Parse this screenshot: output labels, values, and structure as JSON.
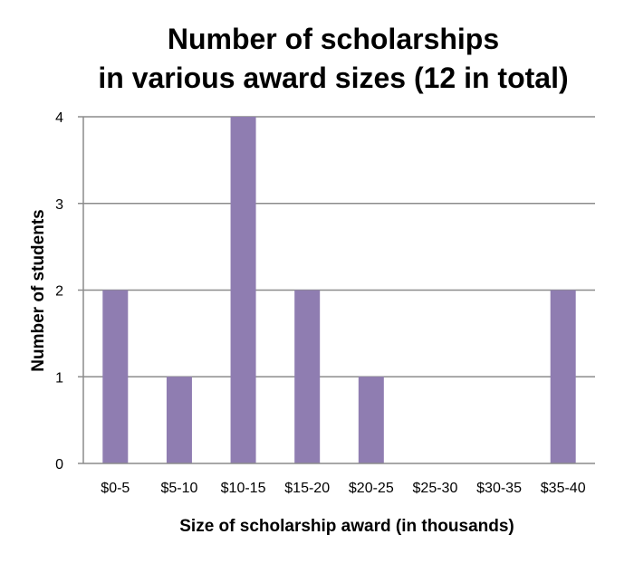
{
  "chart_data": {
    "type": "bar",
    "title_lines": [
      "Number of scholarships",
      "in various award sizes (12 in total)"
    ],
    "xlabel": "Size of scholarship award (in thousands)",
    "ylabel": "Number of students",
    "categories": [
      "$0-5",
      "$5-10",
      "$10-15",
      "$15-20",
      "$20-25",
      "$25-30",
      "$30-35",
      "$35-40"
    ],
    "values": [
      2,
      1,
      4,
      2,
      1,
      0,
      0,
      2
    ],
    "ylim": [
      0,
      4
    ],
    "yticks": [
      "0",
      "1",
      "2",
      "3",
      "4"
    ],
    "grid": true,
    "legend": "none",
    "colors": {
      "bar": "#8f7db1",
      "grid": "#8c8c8c",
      "axis": "#8c8c8c"
    }
  }
}
